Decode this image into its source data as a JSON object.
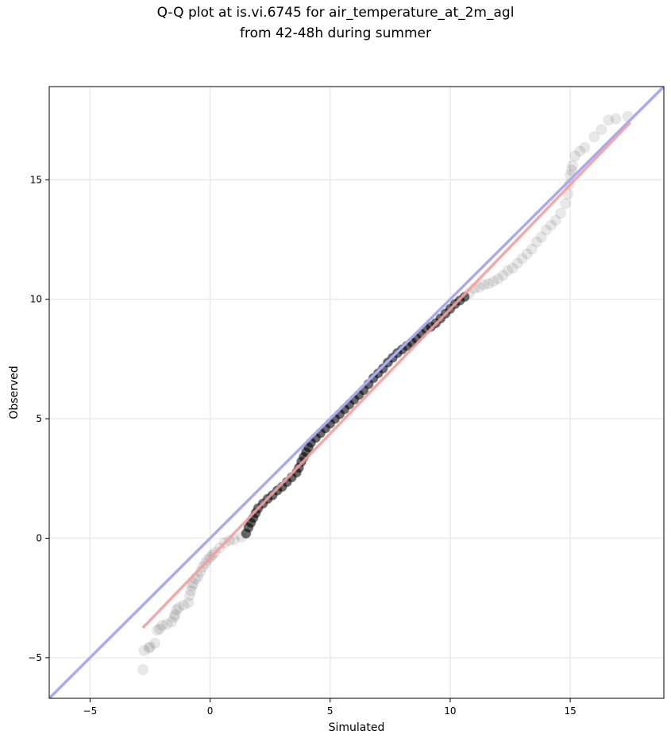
{
  "chart_data": {
    "type": "scatter",
    "title_line1": "Q-Q plot at is.vi.6745 for air_temperature_at_2m_agl",
    "title_line2": "from 42-48h during summer",
    "xlabel": "Simulated",
    "ylabel": "Observed",
    "xlim": [
      -6.7,
      18.9
    ],
    "ylim": [
      -6.7,
      18.9
    ],
    "xticks": [
      -5,
      0,
      5,
      10,
      15
    ],
    "yticks": [
      -5,
      0,
      5,
      10,
      15
    ],
    "xtick_labels": [
      "−5",
      "0",
      "5",
      "10",
      "15"
    ],
    "ytick_labels": [
      "−5",
      "0",
      "5",
      "10",
      "15"
    ],
    "grid": true,
    "colors": {
      "points": "#000000",
      "identity_line": "#aaaaf0",
      "fit_line": "#f2a0a0"
    },
    "quantile_points": [
      [
        -2.8,
        -5.5
      ],
      [
        -2.75,
        -4.7
      ],
      [
        -2.55,
        -4.6
      ],
      [
        -2.5,
        -4.55
      ],
      [
        -2.3,
        -4.4
      ],
      [
        -2.2,
        -3.85
      ],
      [
        -2.1,
        -3.8
      ],
      [
        -2.0,
        -3.65
      ],
      [
        -1.8,
        -3.6
      ],
      [
        -1.6,
        -3.5
      ],
      [
        -1.5,
        -3.3
      ],
      [
        -1.45,
        -3.2
      ],
      [
        -1.4,
        -3.0
      ],
      [
        -1.3,
        -2.9
      ],
      [
        -1.1,
        -2.8
      ],
      [
        -0.9,
        -2.7
      ],
      [
        -0.85,
        -2.4
      ],
      [
        -0.8,
        -2.2
      ],
      [
        -0.75,
        -2.0
      ],
      [
        -0.7,
        -1.9
      ],
      [
        -0.6,
        -1.7
      ],
      [
        -0.5,
        -1.6
      ],
      [
        -0.4,
        -1.4
      ],
      [
        -0.3,
        -1.2
      ],
      [
        -0.2,
        -1.05
      ],
      [
        -0.1,
        -0.9
      ],
      [
        0.0,
        -0.8
      ],
      [
        0.1,
        -0.7
      ],
      [
        0.2,
        -0.6
      ],
      [
        0.4,
        -0.4
      ],
      [
        0.6,
        -0.2
      ],
      [
        0.8,
        -0.1
      ],
      [
        1.0,
        -0.05
      ],
      [
        1.3,
        0.05
      ],
      [
        1.5,
        0.2
      ],
      [
        1.6,
        0.45
      ],
      [
        1.7,
        0.65
      ],
      [
        1.8,
        0.85
      ],
      [
        1.9,
        1.05
      ],
      [
        2.0,
        1.25
      ],
      [
        2.2,
        1.45
      ],
      [
        2.4,
        1.65
      ],
      [
        2.6,
        1.8
      ],
      [
        2.8,
        2.0
      ],
      [
        3.0,
        2.15
      ],
      [
        3.2,
        2.35
      ],
      [
        3.4,
        2.55
      ],
      [
        3.6,
        2.75
      ],
      [
        3.7,
        2.95
      ],
      [
        3.8,
        3.2
      ],
      [
        3.9,
        3.4
      ],
      [
        4.0,
        3.6
      ],
      [
        4.1,
        3.8
      ],
      [
        4.2,
        4.0
      ],
      [
        4.4,
        4.2
      ],
      [
        4.6,
        4.4
      ],
      [
        4.8,
        4.6
      ],
      [
        5.0,
        4.8
      ],
      [
        5.2,
        5.0
      ],
      [
        5.4,
        5.2
      ],
      [
        5.6,
        5.4
      ],
      [
        5.8,
        5.6
      ],
      [
        6.0,
        5.8
      ],
      [
        6.2,
        6.0
      ],
      [
        6.4,
        6.2
      ],
      [
        6.6,
        6.45
      ],
      [
        6.8,
        6.7
      ],
      [
        7.0,
        6.9
      ],
      [
        7.2,
        7.1
      ],
      [
        7.4,
        7.35
      ],
      [
        7.6,
        7.55
      ],
      [
        7.8,
        7.75
      ],
      [
        8.0,
        7.9
      ],
      [
        8.2,
        8.05
      ],
      [
        8.4,
        8.2
      ],
      [
        8.6,
        8.35
      ],
      [
        8.8,
        8.55
      ],
      [
        9.0,
        8.75
      ],
      [
        9.2,
        8.85
      ],
      [
        9.4,
        9.0
      ],
      [
        9.6,
        9.2
      ],
      [
        9.8,
        9.4
      ],
      [
        10.0,
        9.6
      ],
      [
        10.2,
        9.8
      ],
      [
        10.4,
        9.95
      ],
      [
        10.6,
        10.1
      ],
      [
        10.8,
        10.25
      ],
      [
        11.0,
        10.45
      ],
      [
        11.2,
        10.5
      ],
      [
        11.4,
        10.6
      ],
      [
        11.6,
        10.65
      ],
      [
        11.8,
        10.75
      ],
      [
        12.0,
        10.85
      ],
      [
        12.2,
        11.0
      ],
      [
        12.4,
        11.2
      ],
      [
        12.6,
        11.3
      ],
      [
        12.8,
        11.5
      ],
      [
        13.0,
        11.7
      ],
      [
        13.2,
        11.9
      ],
      [
        13.4,
        12.1
      ],
      [
        13.6,
        12.4
      ],
      [
        13.8,
        12.6
      ],
      [
        14.0,
        12.9
      ],
      [
        14.2,
        13.1
      ],
      [
        14.4,
        13.3
      ],
      [
        14.6,
        13.6
      ],
      [
        14.8,
        14.0
      ],
      [
        14.9,
        14.4
      ],
      [
        14.95,
        14.8
      ],
      [
        15.0,
        15.2
      ],
      [
        15.05,
        15.4
      ],
      [
        15.1,
        15.6
      ],
      [
        15.2,
        16.0
      ],
      [
        15.4,
        16.2
      ],
      [
        15.6,
        16.35
      ],
      [
        16.0,
        16.8
      ],
      [
        16.3,
        17.1
      ],
      [
        16.6,
        17.5
      ],
      [
        16.9,
        17.55
      ],
      [
        17.4,
        17.65
      ]
    ],
    "fit_line": {
      "x": [
        -2.8,
        17.5
      ],
      "y": [
        -3.75,
        17.4
      ]
    },
    "identity_line": {
      "x": [
        -6.7,
        18.9
      ],
      "y": [
        -6.7,
        18.9
      ]
    }
  }
}
